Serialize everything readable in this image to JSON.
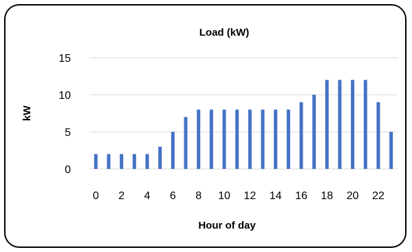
{
  "chart_data": {
    "type": "bar",
    "title": "Load (kW)",
    "xlabel": "Hour of day",
    "ylabel": "kW",
    "ylim": [
      0,
      15
    ],
    "yticks": [
      0,
      5,
      10,
      15
    ],
    "grid": true,
    "legend": "none",
    "bar_color": "#4472c4",
    "categories": [
      0,
      1,
      2,
      3,
      4,
      5,
      6,
      7,
      8,
      9,
      10,
      11,
      12,
      13,
      14,
      15,
      16,
      17,
      18,
      19,
      20,
      21,
      22,
      23
    ],
    "xtick_labels": [
      "0",
      "2",
      "4",
      "6",
      "8",
      "10",
      "12",
      "14",
      "16",
      "18",
      "20",
      "22"
    ],
    "values": [
      2,
      2,
      2,
      2,
      2,
      3,
      5,
      7,
      8,
      8,
      8,
      8,
      8,
      8,
      8,
      8,
      9,
      10,
      12,
      12,
      12,
      12,
      9,
      5
    ]
  }
}
